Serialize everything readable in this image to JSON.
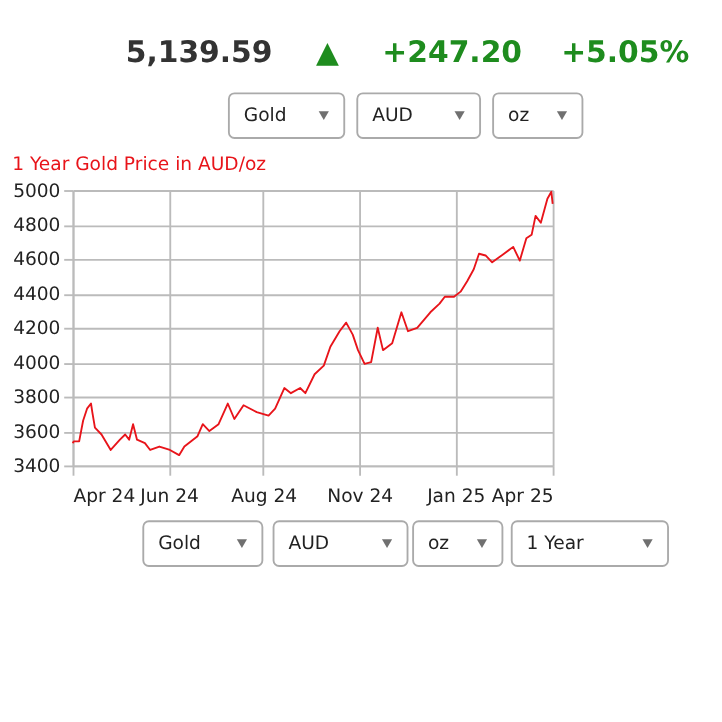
{
  "chart_data": {
    "type": "line",
    "title": "1 Year Gold Price in AUD/oz",
    "annotations": [
      "5,139.59",
      "▲",
      "+247.20",
      "+5.05%",
      "Gold",
      "AUD",
      "oz",
      "Gold",
      "AUD",
      "oz",
      "1 Year"
    ],
    "x": [
      "2024-04-08",
      "2024-04-09",
      "2024-04-13",
      "2024-04-16",
      "2024-04-19",
      "2024-04-22",
      "2024-04-23",
      "2024-04-25",
      "2024-04-30",
      "2024-05-07",
      "2024-05-14",
      "2024-05-18",
      "2024-05-21",
      "2024-05-24",
      "2024-05-27",
      "2024-06-02",
      "2024-06-06",
      "2024-06-13",
      "2024-06-21",
      "2024-06-28",
      "2024-07-02",
      "2024-07-12",
      "2024-07-16",
      "2024-07-21",
      "2024-07-28",
      "2024-08-04",
      "2024-08-09",
      "2024-08-16",
      "2024-08-26",
      "2024-09-04",
      "2024-09-09",
      "2024-09-16",
      "2024-09-21",
      "2024-09-28",
      "2024-10-02",
      "2024-10-09",
      "2024-10-16",
      "2024-10-21",
      "2024-10-28",
      "2024-11-02",
      "2024-11-07",
      "2024-11-11",
      "2024-11-16",
      "2024-11-21",
      "2024-11-26",
      "2024-11-30",
      "2024-12-07",
      "2024-12-14",
      "2024-12-19",
      "2024-12-26",
      "2025-01-05",
      "2025-01-12",
      "2025-01-16",
      "2025-01-23",
      "2025-01-28",
      "2025-02-02",
      "2025-02-07",
      "2025-02-11",
      "2025-02-16",
      "2025-02-21",
      "2025-03-02",
      "2025-03-09",
      "2025-03-14",
      "2025-03-19",
      "2025-03-23",
      "2025-03-26",
      "2025-03-30",
      "2025-04-04",
      "2025-04-07",
      "2025-04-08"
    ],
    "series": [
      {
        "color": "#e8141a",
        "values": [
          3530,
          3540,
          3540,
          3660,
          3730,
          3760,
          3710,
          3620,
          3580,
          3490,
          3550,
          3580,
          3550,
          3640,
          3550,
          3530,
          3490,
          3510,
          3490,
          3460,
          3510,
          3570,
          3640,
          3600,
          3640,
          3760,
          3670,
          3750,
          3710,
          3690,
          3730,
          3850,
          3820,
          3850,
          3820,
          3930,
          3980,
          4090,
          4180,
          4230,
          4160,
          4070,
          3990,
          4000,
          4200,
          4070,
          4110,
          4290,
          4180,
          4200,
          4290,
          4340,
          4380,
          4380,
          4410,
          4470,
          4540,
          4630,
          4620,
          4580,
          4630,
          4670,
          4590,
          4720,
          4740,
          4850,
          4810,
          4950,
          4990,
          4920
        ]
      }
    ],
    "xlim": [
      "2024-04-08",
      "2025-04-08"
    ],
    "xticks": [
      {
        "value": "2024-04-08",
        "label": "Apr 24"
      },
      {
        "value": "2024-06-20",
        "label": "Jun 24"
      },
      {
        "value": "2024-08-31",
        "label": "Aug 24"
      },
      {
        "value": "2024-11-12",
        "label": "Nov 24"
      },
      {
        "value": "2025-01-24",
        "label": "Jan 25"
      },
      {
        "value": "2025-04-08",
        "label": "Apr 25"
      }
    ],
    "ylim": [
      3400,
      5000
    ],
    "yticks": [
      3400,
      3600,
      3800,
      4000,
      4200,
      4400,
      4600,
      4800,
      5000
    ],
    "grid": true,
    "line_style": "solid",
    "marker": "none"
  }
}
